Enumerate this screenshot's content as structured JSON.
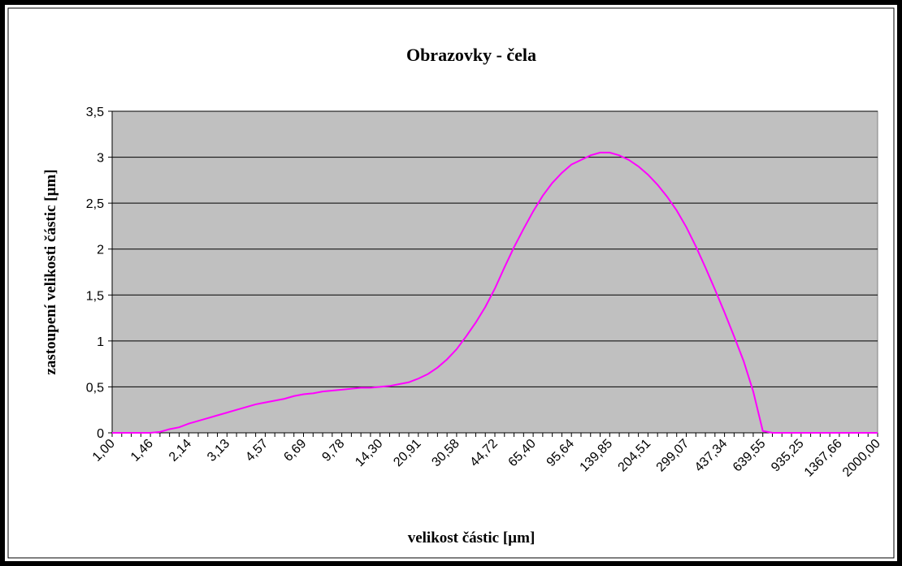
{
  "chart_data": {
    "type": "line",
    "title": "Obrazovky - čela",
    "x_label": "velikost částic [µm]",
    "y_label": "zastoupení velikosti částic [µm]",
    "categories": [
      "1,00",
      null,
      null,
      null,
      "1,46",
      null,
      null,
      null,
      "2,14",
      null,
      null,
      null,
      "3,13",
      null,
      null,
      null,
      "4,57",
      null,
      null,
      null,
      "6,69",
      null,
      null,
      null,
      "9,78",
      null,
      null,
      null,
      "14,30",
      null,
      null,
      null,
      "20,91",
      null,
      null,
      null,
      "30,58",
      null,
      null,
      null,
      "44,72",
      null,
      null,
      null,
      "65,40",
      null,
      null,
      null,
      "95,64",
      null,
      null,
      null,
      "139,85",
      null,
      null,
      null,
      "204,51",
      null,
      null,
      null,
      "299,07",
      null,
      null,
      null,
      "437,34",
      null,
      null,
      null,
      "639,55",
      null,
      null,
      null,
      "935,25",
      null,
      null,
      null,
      "1367,66",
      null,
      null,
      null,
      "2000,00"
    ],
    "series": [
      {
        "name": "zastoupení",
        "color": "#ff00ff",
        "values": [
          0,
          0,
          0,
          0,
          0,
          0.01,
          0.04,
          0.06,
          0.1,
          0.13,
          0.16,
          0.19,
          0.22,
          0.25,
          0.28,
          0.31,
          0.33,
          0.35,
          0.37,
          0.4,
          0.42,
          0.43,
          0.45,
          0.46,
          0.47,
          0.48,
          0.49,
          0.49,
          0.5,
          0.51,
          0.53,
          0.55,
          0.59,
          0.64,
          0.71,
          0.8,
          0.91,
          1.05,
          1.2,
          1.37,
          1.57,
          1.8,
          2.02,
          2.22,
          2.41,
          2.58,
          2.72,
          2.83,
          2.92,
          2.97,
          3.02,
          3.05,
          3.05,
          3.02,
          2.97,
          2.9,
          2.81,
          2.7,
          2.57,
          2.42,
          2.24,
          2.03,
          1.8,
          1.56,
          1.31,
          1.05,
          0.78,
          0.45,
          0.02,
          0,
          0,
          0,
          0,
          0,
          0,
          0,
          0,
          0,
          0,
          0,
          0
        ]
      }
    ],
    "ylim": [
      0,
      3.5
    ],
    "yticks": [
      0,
      {
        "value": 0.5,
        "label": "0,5"
      },
      1,
      {
        "value": 1.5,
        "label": "1,5"
      },
      2,
      {
        "value": 2.5,
        "label": "2,5"
      },
      3,
      {
        "value": 3.5,
        "label": "3,5"
      }
    ],
    "grid": true,
    "plot_background": "#c0c0c0"
  }
}
